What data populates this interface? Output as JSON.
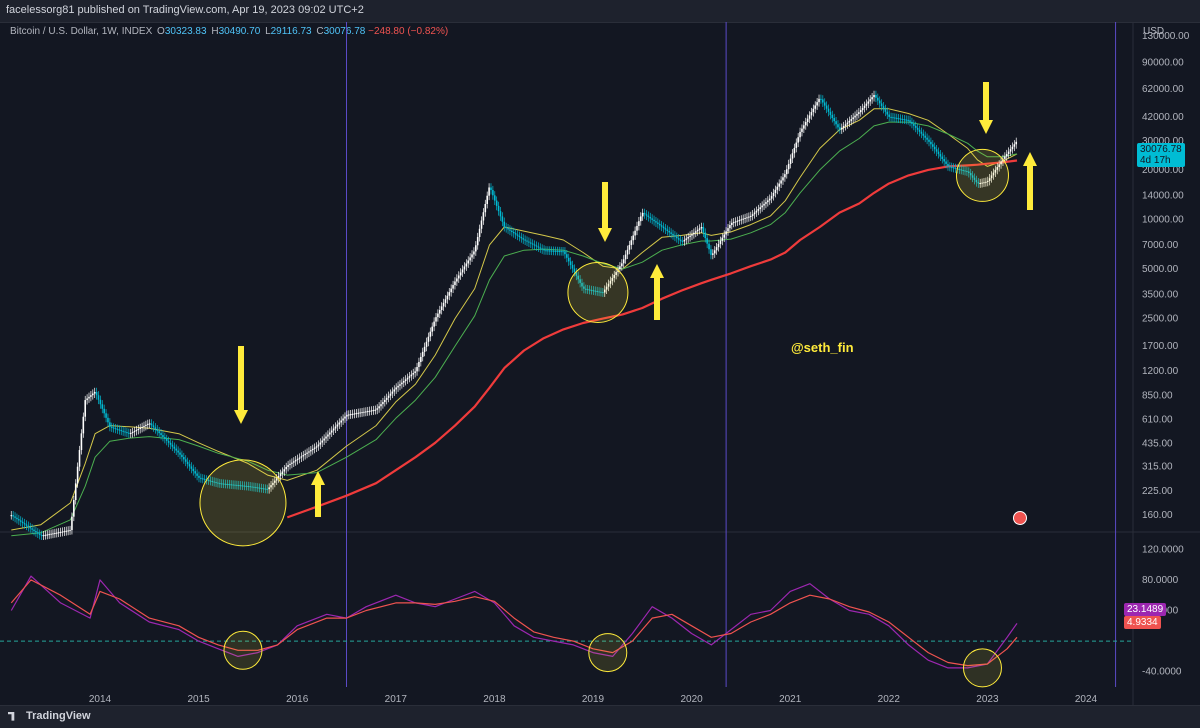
{
  "header": {
    "publisher": "facelessorg81 published on TradingView.com, Apr 19, 2023 09:02 UTC+2"
  },
  "symbol": {
    "name": "Bitcoin / U.S. Dollar, 1W, INDEX",
    "open_label": "O",
    "open": "30323.83",
    "high_label": "H",
    "high": "30490.70",
    "low_label": "L",
    "low": "29116.73",
    "close_label": "C",
    "close": "30076.78",
    "change": "−248.80 (−0.82%)"
  },
  "price_tag": {
    "price": "30076.78",
    "countdown": "4d 17h"
  },
  "indicator_tags": {
    "k": "23.1489",
    "d": "4.9334"
  },
  "currency": "USD",
  "watermark": "@seth_fin",
  "footer": {
    "brand": "TradingView"
  },
  "colors": {
    "background": "#131722",
    "candle_up": "#ffffff",
    "candle_down": "#00bcd4",
    "ma_short": "#d4c84a",
    "ma_mid": "#4caf50",
    "ma_long": "#ef3b3b",
    "indicator_k": "#9c27b0",
    "indicator_d": "#ef5350",
    "annotation": "#ffeb3b",
    "vertical_lines": "#5b4ac6"
  },
  "chart_data": [
    {
      "type": "line",
      "scale": "log",
      "ylim": [
        130,
        130000
      ],
      "y_ticks": [
        "130000.00",
        "90000.00",
        "62000.00",
        "42000.00",
        "30000.00",
        "20000.00",
        "14000.00",
        "10000.00",
        "7000.00",
        "5000.00",
        "3500.00",
        "2500.00",
        "1700.00",
        "1200.00",
        "850.00",
        "610.00",
        "435.00",
        "315.00",
        "225.00",
        "160.00"
      ],
      "x_ticks": [
        "2014",
        "2015",
        "2016",
        "2017",
        "2018",
        "2019",
        "2020",
        "2021",
        "2022",
        "2023",
        "2024"
      ],
      "x": [
        2013.1,
        2013.4,
        2013.7,
        2013.85,
        2013.95,
        2014.1,
        2014.3,
        2014.5,
        2014.8,
        2015.0,
        2015.2,
        2015.5,
        2015.7,
        2015.9,
        2016.2,
        2016.5,
        2016.8,
        2017.0,
        2017.2,
        2017.4,
        2017.6,
        2017.8,
        2017.95,
        2018.1,
        2018.3,
        2018.5,
        2018.7,
        2018.9,
        2019.1,
        2019.3,
        2019.5,
        2019.7,
        2019.9,
        2020.1,
        2020.2,
        2020.4,
        2020.6,
        2020.8,
        2020.95,
        2021.1,
        2021.3,
        2021.5,
        2021.7,
        2021.85,
        2022.0,
        2022.2,
        2022.4,
        2022.6,
        2022.8,
        2022.9,
        2023.0,
        2023.15,
        2023.3
      ],
      "series": [
        {
          "name": "BTCUSD",
          "values": [
            160,
            120,
            130,
            800,
            900,
            550,
            500,
            580,
            380,
            270,
            250,
            240,
            230,
            320,
            420,
            650,
            700,
            950,
            1200,
            2500,
            4200,
            6500,
            16000,
            9000,
            7500,
            6500,
            6400,
            3800,
            3600,
            5500,
            11000,
            9000,
            7300,
            9000,
            6000,
            9500,
            10500,
            13500,
            19000,
            34000,
            55000,
            35000,
            45000,
            57000,
            42000,
            40000,
            30000,
            21000,
            19500,
            16500,
            17000,
            23000,
            30000
          ]
        },
        {
          "values": [
            130,
            140,
            190,
            330,
            500,
            560,
            550,
            540,
            500,
            440,
            390,
            330,
            280,
            260,
            300,
            420,
            560,
            780,
            1000,
            1500,
            2500,
            3800,
            7000,
            9000,
            8500,
            8000,
            7500,
            6300,
            5200,
            5000,
            6300,
            7800,
            8000,
            8300,
            8000,
            8400,
            9300,
            10500,
            13000,
            18000,
            27000,
            35000,
            40000,
            47000,
            47000,
            44000,
            40000,
            33000,
            27000,
            23000,
            21000,
            22500,
            25000
          ]
        },
        {
          "values": [
            120,
            125,
            150,
            240,
            360,
            450,
            470,
            480,
            460,
            420,
            380,
            340,
            300,
            280,
            290,
            360,
            460,
            620,
            800,
            1100,
            1700,
            2600,
            4300,
            6000,
            6500,
            6600,
            6500,
            6000,
            5400,
            5000,
            5500,
            6500,
            7000,
            7400,
            7400,
            7600,
            8300,
            9300,
            11000,
            14500,
            20000,
            26000,
            31000,
            37000,
            39000,
            39000,
            37000,
            33000,
            29000,
            26000,
            24000,
            24000,
            25000
          ]
        },
        {
          "name": "200W MA",
          "values": [
            null,
            null,
            null,
            null,
            null,
            null,
            null,
            null,
            null,
            null,
            null,
            null,
            null,
            155,
            180,
            210,
            250,
            300,
            360,
            440,
            560,
            730,
            950,
            1250,
            1600,
            1900,
            2150,
            2350,
            2500,
            2650,
            2900,
            3300,
            3700,
            4100,
            4300,
            4700,
            5200,
            5700,
            6300,
            7500,
            9000,
            11000,
            12500,
            14500,
            16500,
            18500,
            20000,
            21000,
            21300,
            21500,
            21800,
            22200,
            22800
          ]
        }
      ]
    },
    {
      "type": "line",
      "ylim": [
        -60,
        140
      ],
      "y_ticks": [
        "120.0000",
        "80.0000",
        "40.0000",
        "-40.0000"
      ],
      "x": [
        2013.1,
        2013.3,
        2013.6,
        2013.9,
        2014.0,
        2014.2,
        2014.5,
        2014.8,
        2015.0,
        2015.2,
        2015.4,
        2015.6,
        2015.8,
        2016.0,
        2016.3,
        2016.5,
        2016.7,
        2017.0,
        2017.2,
        2017.4,
        2017.6,
        2017.8,
        2018.0,
        2018.2,
        2018.4,
        2018.6,
        2018.8,
        2019.0,
        2019.2,
        2019.4,
        2019.6,
        2019.8,
        2020.0,
        2020.2,
        2020.4,
        2020.6,
        2020.8,
        2021.0,
        2021.2,
        2021.4,
        2021.6,
        2021.8,
        2022.0,
        2022.2,
        2022.4,
        2022.6,
        2022.8,
        2023.0,
        2023.2,
        2023.3
      ],
      "series": [
        {
          "values": [
            40,
            85,
            50,
            30,
            80,
            50,
            25,
            15,
            0,
            -10,
            -20,
            -15,
            -5,
            20,
            35,
            30,
            45,
            60,
            50,
            45,
            55,
            65,
            50,
            20,
            5,
            0,
            -5,
            -15,
            -20,
            10,
            45,
            30,
            10,
            -5,
            15,
            35,
            40,
            65,
            75,
            55,
            40,
            35,
            20,
            -5,
            -25,
            -35,
            -35,
            -30,
            5,
            23.1489
          ]
        },
        {
          "values": [
            50,
            80,
            60,
            35,
            65,
            55,
            30,
            20,
            5,
            -5,
            -12,
            -12,
            -5,
            15,
            30,
            30,
            40,
            50,
            50,
            48,
            52,
            58,
            52,
            30,
            12,
            5,
            0,
            -10,
            -15,
            0,
            30,
            35,
            20,
            5,
            10,
            25,
            35,
            50,
            60,
            55,
            45,
            38,
            25,
            5,
            -15,
            -28,
            -32,
            -30,
            -10,
            4.9334
          ]
        }
      ]
    }
  ]
}
